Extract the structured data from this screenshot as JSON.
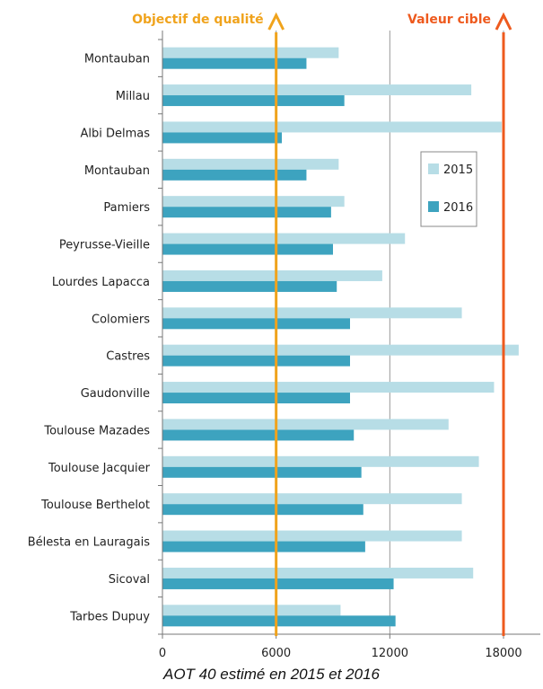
{
  "caption": "AOT 40 estimé en 2015 et 2016",
  "colors": {
    "series_2015": "#b7dde6",
    "series_2016": "#3da3bf",
    "quality_line": "#f0a31c",
    "target_line": "#ee5a1e",
    "gridline": "#999999"
  },
  "chart_data": {
    "type": "bar",
    "orientation": "horizontal",
    "title": "",
    "xlabel": "",
    "ylabel": "",
    "xlim": [
      0,
      20000
    ],
    "xticks": [
      0,
      6000,
      12000,
      18000
    ],
    "grid": true,
    "legend_position": "right",
    "categories": [
      "Montauban",
      "Millau",
      "Albi Delmas",
      "Montauban",
      "Pamiers",
      "Peyrusse-Vieille",
      "Lourdes Lapacca",
      "Colomiers",
      "Castres",
      "Gaudonville",
      "Toulouse Mazades",
      "Toulouse Jacquier",
      "Toulouse Berthelot",
      "Bélesta en Lauragais",
      "Sicoval",
      "Tarbes Dupuy"
    ],
    "series": [
      {
        "name": "2015",
        "values": [
          9300,
          16300,
          17900,
          9300,
          9600,
          12800,
          11600,
          15800,
          18800,
          17500,
          15100,
          16700,
          15800,
          15800,
          16400,
          9400
        ]
      },
      {
        "name": "2016",
        "values": [
          7600,
          9600,
          6300,
          7600,
          8900,
          9000,
          9200,
          9900,
          9900,
          9900,
          10100,
          10500,
          10600,
          10700,
          12200,
          12300
        ]
      }
    ],
    "reference_lines": [
      {
        "label": "Objectif de qualité",
        "value": 6000
      },
      {
        "label": "Valeur cible",
        "value": 18000
      }
    ]
  }
}
